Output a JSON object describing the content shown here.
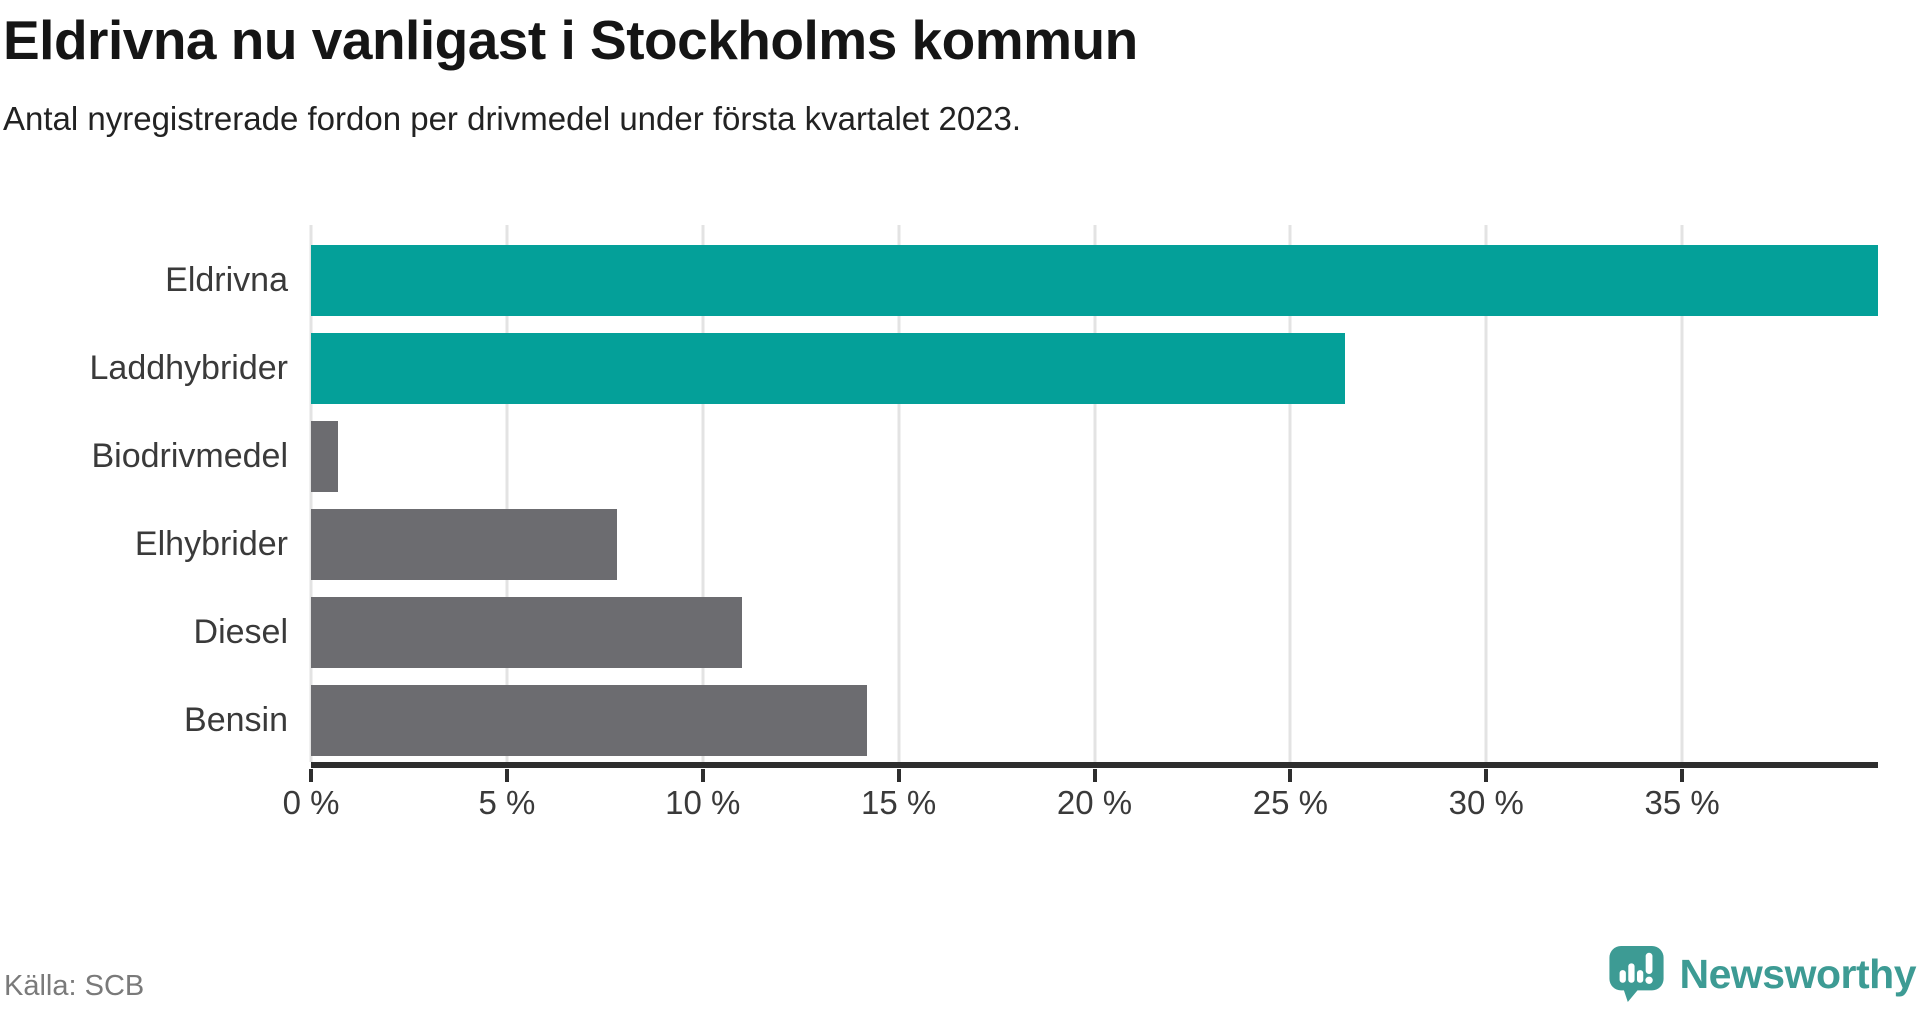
{
  "header": {
    "title": "Eldrivna nu vanligast i Stockholms kommun",
    "subtitle": "Antal nyregistrerade fordon per drivmedel under första kvartalet 2023."
  },
  "footer": {
    "source": "Källa: SCB",
    "brand_name": "Newsworthy"
  },
  "colors": {
    "highlight_bar": "#04a099",
    "default_bar": "#6c6c70",
    "axis": "#2e2e2e",
    "gridline": "#e3e3e3",
    "title_text": "#151515",
    "body_text": "#222222",
    "label_text": "#3a3a3a",
    "source_text": "#7a7a7a",
    "brand_teal": "#3d9b94"
  },
  "chart_data": {
    "type": "bar",
    "orientation": "horizontal",
    "title": "Eldrivna nu vanligast i Stockholms kommun",
    "subtitle": "Antal nyregistrerade fordon per drivmedel under första kvartalet 2023.",
    "categories": [
      "Eldrivna",
      "Laddhybrider",
      "Biodrivmedel",
      "Elhybrider",
      "Diesel",
      "Bensin"
    ],
    "values": [
      40.0,
      26.4,
      0.7,
      7.8,
      11.0,
      14.2
    ],
    "bar_colors": [
      "#04a099",
      "#04a099",
      "#6c6c70",
      "#6c6c70",
      "#6c6c70",
      "#6c6c70"
    ],
    "unit": "%",
    "xlabel": "",
    "ylabel": "",
    "xlim": [
      0,
      40
    ],
    "xticks": [
      0,
      5,
      10,
      15,
      20,
      25,
      30,
      35
    ],
    "xtick_label_format": "{value} %",
    "grid": true,
    "legend": false
  }
}
